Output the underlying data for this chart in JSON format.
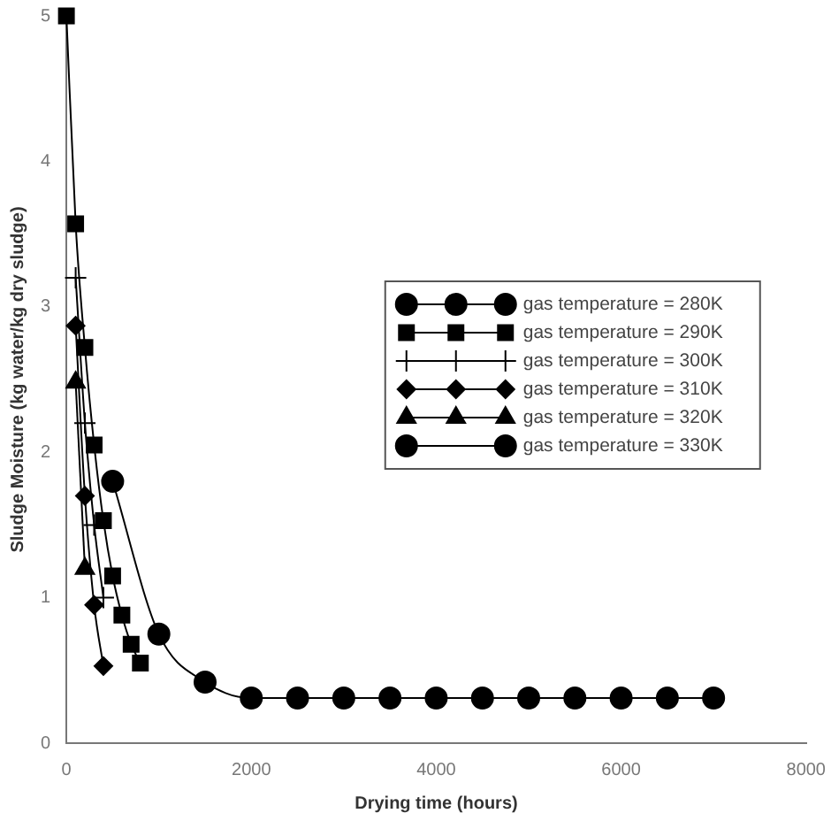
{
  "chart_data": {
    "type": "line",
    "xlabel": "Drying time (hours)",
    "ylabel": "Sludge Moisture (kg water/kg dry sludge)",
    "xlim": [
      0,
      8000
    ],
    "xticks": [
      0,
      2000,
      4000,
      6000,
      8000
    ],
    "ylim": [
      0,
      5
    ],
    "yticks": [
      0,
      1,
      2,
      3,
      4,
      5
    ],
    "grid": false,
    "legend": "top right",
    "series": [
      {
        "name": "gas temperature = 280K",
        "color": "#000000",
        "marker": "circle",
        "x": [
          500,
          1000,
          1500,
          2000,
          2500,
          3000,
          3500,
          4000,
          4500,
          5000,
          5500,
          6000,
          6500,
          7000
        ],
        "values": [
          1.8,
          0.75,
          0.42,
          0.31,
          0.31,
          0.31,
          0.31,
          0.31,
          0.31,
          0.31,
          0.31,
          0.31,
          0.31,
          0.31
        ]
      },
      {
        "name": "gas temperature = 290K",
        "color": "#000000",
        "marker": "square",
        "x": [
          0,
          100,
          200,
          300,
          400,
          500,
          600,
          700,
          800
        ],
        "values": [
          5,
          3.57,
          2.72,
          2.05,
          1.53,
          1.15,
          0.88,
          0.68,
          0.55
        ]
      },
      {
        "name": "gas temperature = 300K",
        "color": "#000000",
        "marker": "cross",
        "x": [
          100,
          200,
          300,
          400
        ],
        "values": [
          3.2,
          2.2,
          1.5,
          1.0
        ]
      },
      {
        "name": "gas temperature = 310K",
        "color": "#000000",
        "marker": "diamond",
        "x": [
          100,
          200,
          300,
          400
        ],
        "values": [
          2.87,
          1.7,
          0.95,
          0.53
        ]
      },
      {
        "name": "gas temperature = 320K",
        "color": "#000000",
        "marker": "triangle",
        "x": [
          100,
          200
        ],
        "values": [
          2.48,
          1.2
        ]
      },
      {
        "name": "gas temperature = 330K",
        "color": "#000000",
        "marker": "circle"
      }
    ]
  }
}
